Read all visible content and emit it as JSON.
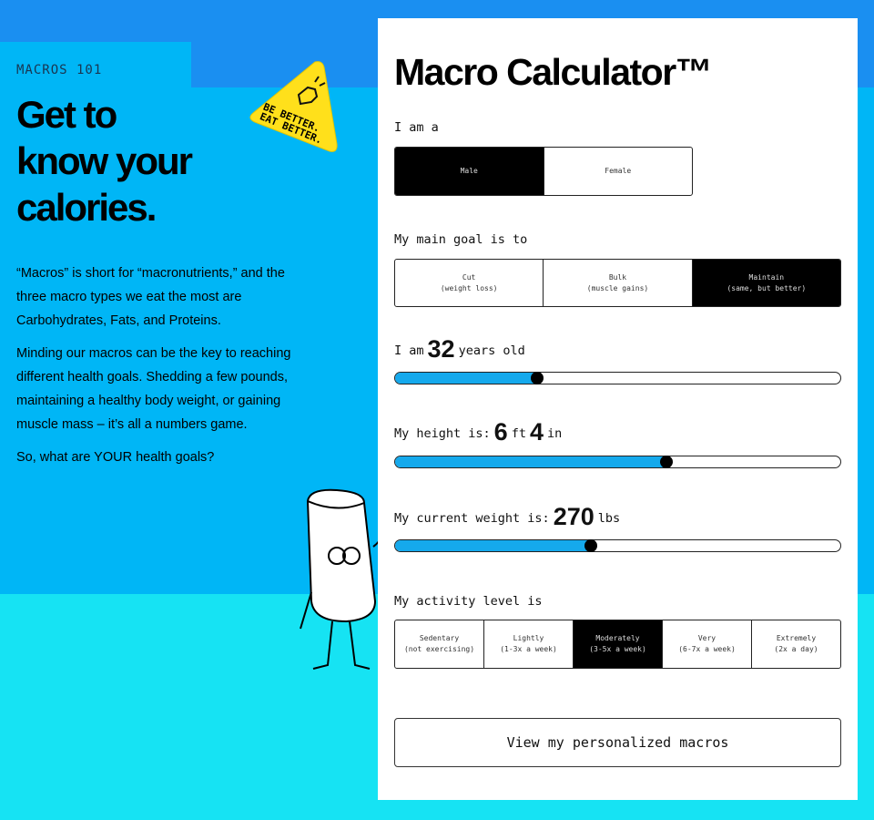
{
  "intro": {
    "eyebrow": "MACROS 101",
    "headline_1": "Get to",
    "headline_2": "know your",
    "headline_3": "calories.",
    "p1": "“Macros” is short for “macronutrients,” and the three macro types we eat the most are Carbohydrates, Fats, and Proteins.",
    "p2": "Minding our macros can be the key to reaching different health goals.  Shedding a few pounds, maintaining a healthy body weight, or gaining muscle mass – it’s all a numbers game.",
    "p3": "So, what are YOUR health goals?",
    "badge_text": "BE BETTER. EAT BETTER."
  },
  "colors": {
    "top_band": "#1a8ff1",
    "panel": "#00b6f6",
    "bottom_band": "#16e3f3",
    "slider_fill": "#15a9ec",
    "badge": "#ffe01b"
  },
  "calculator": {
    "title": "Macro Calculator™",
    "sex": {
      "label": "I am a",
      "options": [
        "Male",
        "Female"
      ],
      "selected": "Male"
    },
    "goal": {
      "label": "My main goal is to",
      "options": [
        {
          "name": "Cut",
          "sub": "(weight loss)"
        },
        {
          "name": "Bulk",
          "sub": "(muscle gains)"
        },
        {
          "name": "Maintain",
          "sub": "(same, but better)"
        }
      ],
      "selected": "Maintain"
    },
    "age": {
      "prefix": "I am",
      "value": "32",
      "suffix": "years old",
      "slider_fraction": 0.32
    },
    "height": {
      "prefix": "My height is:",
      "feet": "6",
      "ft": "ft",
      "inches": "4",
      "in": "in",
      "slider_fraction": 0.61
    },
    "weight": {
      "prefix": "My current weight is:",
      "value": "270",
      "unit": "lbs",
      "slider_fraction": 0.44
    },
    "activity": {
      "label": "My activity level is",
      "options": [
        {
          "name": "Sedentary",
          "sub": "(not exercising)"
        },
        {
          "name": "Lightly",
          "sub": "(1-3x a week)"
        },
        {
          "name": "Moderately",
          "sub": "(3-5x a week)"
        },
        {
          "name": "Very",
          "sub": "(6-7x a week)"
        },
        {
          "name": "Extremely",
          "sub": "(2x a day)"
        }
      ],
      "selected": "Moderately"
    },
    "cta": "View my personalized macros"
  }
}
